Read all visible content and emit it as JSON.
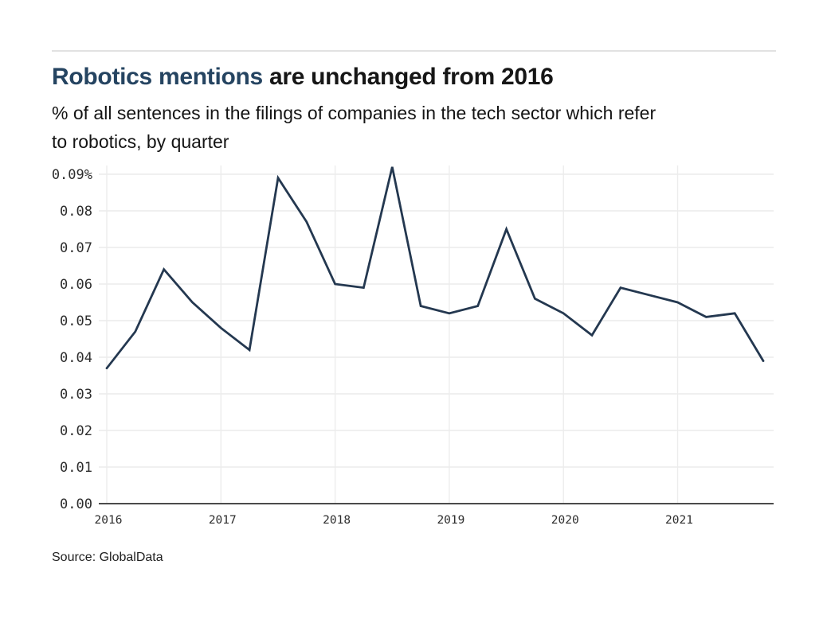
{
  "header": {
    "title_highlight": "Robotics mentions",
    "title_rest": " are unchanged from 2016",
    "subtitle_line1": "% of all sentences in the filings of companies in the tech sector which refer",
    "subtitle_line2": "to robotics, by quarter"
  },
  "footer": {
    "source": "Source: GlobalData"
  },
  "chart_data": {
    "type": "line",
    "title": "Robotics mentions are unchanged from 2016",
    "subtitle": "% of all sentences in the filings of companies in the tech sector which refer to robotics, by quarter",
    "unit": "%",
    "x": [
      "2016-Q1",
      "2016-Q2",
      "2016-Q3",
      "2016-Q4",
      "2017-Q1",
      "2017-Q2",
      "2017-Q3",
      "2017-Q4",
      "2018-Q1",
      "2018-Q2",
      "2018-Q3",
      "2018-Q4",
      "2019-Q1",
      "2019-Q2",
      "2019-Q3",
      "2019-Q4",
      "2020-Q1",
      "2020-Q2",
      "2020-Q3",
      "2020-Q4",
      "2021-Q1",
      "2021-Q2",
      "2021-Q3",
      "2021-Q4"
    ],
    "values": [
      0.037,
      0.047,
      0.064,
      0.055,
      0.048,
      0.042,
      0.089,
      0.077,
      0.06,
      0.059,
      0.092,
      0.054,
      0.052,
      0.054,
      0.075,
      0.056,
      0.052,
      0.046,
      0.059,
      0.057,
      0.055,
      0.051,
      0.052,
      0.039
    ],
    "x_tick_labels": [
      "2016",
      "2017",
      "2018",
      "2019",
      "2020",
      "2021"
    ],
    "y_tick_labels": [
      "0.00",
      "0.01",
      "0.02",
      "0.03",
      "0.04",
      "0.05",
      "0.06",
      "0.07",
      "0.08",
      "0.09%"
    ],
    "y_tick_values": [
      0.0,
      0.01,
      0.02,
      0.03,
      0.04,
      0.05,
      0.06,
      0.07,
      0.08,
      0.09
    ],
    "ylim": [
      0,
      0.095
    ],
    "grid": true,
    "legend": "none",
    "source": "Source: GlobalData",
    "colors": {
      "line": "#243850",
      "grid": "#ececec",
      "axis": "#4b4b4b",
      "tick_text": "#2d2d2d",
      "title_highlight": "#254461",
      "title_text": "#161616"
    }
  }
}
